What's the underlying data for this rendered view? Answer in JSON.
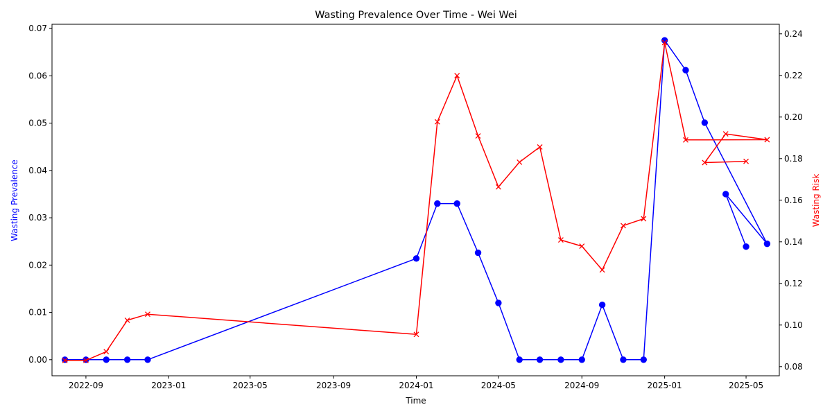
{
  "chart_data": {
    "type": "line",
    "title": "Wasting Prevalence Over Time - Wei Wei",
    "xlabel": "Time",
    "ylabel_left": "Wasting Prevalence",
    "ylabel_right": "Wasting Risk",
    "x_ticks": [
      "2022-09",
      "2023-01",
      "2023-05",
      "2023-09",
      "2024-01",
      "2024-05",
      "2024-09",
      "2025-01",
      "2025-05"
    ],
    "y_left_ticks": [
      "0.00",
      "0.01",
      "0.02",
      "0.03",
      "0.04",
      "0.05",
      "0.06",
      "0.07"
    ],
    "y_right_ticks": [
      "0.08",
      "0.10",
      "0.12",
      "0.14",
      "0.16",
      "0.18",
      "0.20",
      "0.22",
      "0.24"
    ],
    "ylim_left": [
      -0.0034,
      0.0709
    ],
    "ylim_right": [
      0.0756,
      0.2446
    ],
    "xlim": [
      "2022-07-13",
      "2025-06-19"
    ],
    "grid": false,
    "series": [
      {
        "name": "Wasting Prevalence",
        "axis": "left",
        "color": "#0000ff",
        "marker": "circle",
        "x": [
          "2022-08-01",
          "2022-09-01",
          "2022-10-01",
          "2022-11-01",
          "2022-12-01",
          "2024-01-01",
          "2024-02-01",
          "2024-03-01",
          "2024-04-01",
          "2024-05-01",
          "2024-06-01",
          "2024-07-01",
          "2024-08-01",
          "2024-09-01",
          "2024-10-01",
          "2024-11-01",
          "2024-12-01",
          "2025-01-01",
          "2025-02-01",
          "2025-03-01",
          "2025-04-01",
          "2025-05-01",
          "2025-06-01"
        ],
        "values": [
          0.0,
          0.0,
          0.0,
          0.0,
          0.0,
          0.0214,
          0.033,
          0.033,
          0.0226,
          0.012,
          0.0,
          0.0,
          0.0,
          0.0,
          0.0116,
          0.0,
          0.0,
          0.0675,
          0.0612,
          0.0501,
          0.035,
          0.0239,
          0.0245
        ],
        "path_order": [
          0,
          1,
          2,
          3,
          4,
          5,
          6,
          7,
          8,
          9,
          10,
          11,
          12,
          13,
          14,
          15,
          16,
          17,
          18,
          19,
          22,
          20,
          21
        ]
      },
      {
        "name": "Wasting Risk",
        "axis": "right",
        "color": "#ff0000",
        "marker": "x",
        "x": [
          "2022-08-01",
          "2022-09-01",
          "2022-10-01",
          "2022-11-01",
          "2022-12-01",
          "2024-01-01",
          "2024-02-01",
          "2024-03-01",
          "2024-04-01",
          "2024-05-01",
          "2024-06-01",
          "2024-07-01",
          "2024-08-01",
          "2024-09-01",
          "2024-10-01",
          "2024-11-01",
          "2024-12-01",
          "2025-01-01",
          "2025-02-01",
          "2025-03-01",
          "2025-04-01",
          "2025-05-01",
          "2025-06-01"
        ],
        "values": [
          0.083,
          0.083,
          0.0872,
          0.1023,
          0.1052,
          0.0955,
          0.1977,
          0.2199,
          0.1909,
          0.1664,
          0.1783,
          0.1856,
          0.1409,
          0.1379,
          0.1265,
          0.1478,
          0.1511,
          0.2358,
          0.189,
          0.1781,
          0.1919,
          0.1787,
          0.1891
        ],
        "path_order": [
          0,
          1,
          2,
          3,
          4,
          5,
          6,
          7,
          8,
          9,
          10,
          11,
          12,
          13,
          14,
          15,
          16,
          17,
          18,
          22,
          20,
          19,
          21
        ]
      }
    ]
  }
}
